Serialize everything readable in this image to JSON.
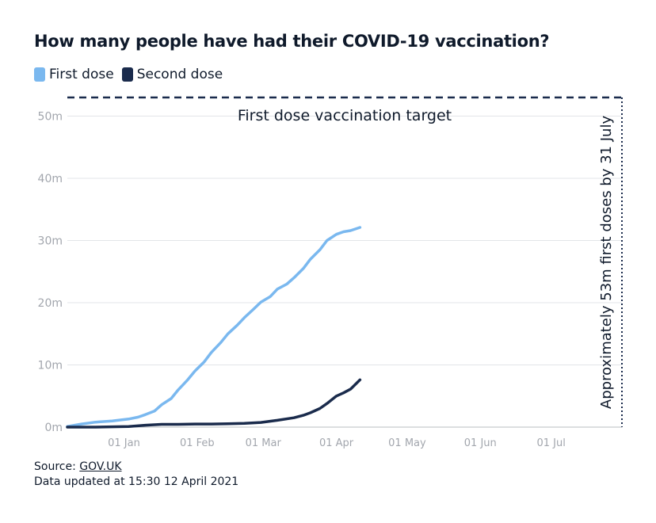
{
  "title": "How many people have had their COVID-19 vaccination?",
  "legend": [
    {
      "label": "First dose",
      "color": "#7ab8ef"
    },
    {
      "label": "Second dose",
      "color": "#1a2b4c"
    }
  ],
  "annotations": {
    "target_label": "First dose vaccination target",
    "deadline_label": "Approximately 53m first doses by 31 July"
  },
  "footer": {
    "source_prefix": "Source: ",
    "source_link": "GOV.UK",
    "updated": "Data updated at 15:30 12 April 2021"
  },
  "chart_data": {
    "type": "line",
    "ylim": [
      0,
      53
    ],
    "yticks": [
      {
        "value": 0,
        "label": "0m"
      },
      {
        "value": 10,
        "label": "10m"
      },
      {
        "value": 20,
        "label": "20m"
      },
      {
        "value": 30,
        "label": "30m"
      },
      {
        "value": 40,
        "label": "40m"
      },
      {
        "value": 50,
        "label": "50m"
      }
    ],
    "xlim": [
      "2020-12-08",
      "2021-07-31"
    ],
    "xticks": [
      {
        "date": "2021-01-01",
        "label": "01 Jan"
      },
      {
        "date": "2021-02-01",
        "label": "01 Feb"
      },
      {
        "date": "2021-03-01",
        "label": "01 Mar"
      },
      {
        "date": "2021-04-01",
        "label": "01 Apr"
      },
      {
        "date": "2021-05-01",
        "label": "01 May"
      },
      {
        "date": "2021-06-01",
        "label": "01 Jun"
      },
      {
        "date": "2021-07-01",
        "label": "01 Jul"
      }
    ],
    "target": {
      "value": 53,
      "date": "2021-07-31"
    },
    "series": [
      {
        "name": "First dose",
        "color": "#7ab8ef",
        "points": [
          [
            "2020-12-08",
            0.1
          ],
          [
            "2020-12-14",
            0.5
          ],
          [
            "2020-12-20",
            0.8
          ],
          [
            "2020-12-27",
            1.0
          ],
          [
            "2021-01-03",
            1.3
          ],
          [
            "2021-01-07",
            1.6
          ],
          [
            "2021-01-10",
            2.0
          ],
          [
            "2021-01-14",
            2.6
          ],
          [
            "2021-01-17",
            3.6
          ],
          [
            "2021-01-21",
            4.6
          ],
          [
            "2021-01-24",
            6.0
          ],
          [
            "2021-01-28",
            7.6
          ],
          [
            "2021-01-31",
            9.0
          ],
          [
            "2021-02-04",
            10.5
          ],
          [
            "2021-02-07",
            12.0
          ],
          [
            "2021-02-11",
            13.6
          ],
          [
            "2021-02-14",
            15.0
          ],
          [
            "2021-02-18",
            16.4
          ],
          [
            "2021-02-21",
            17.6
          ],
          [
            "2021-02-25",
            19.0
          ],
          [
            "2021-02-28",
            20.1
          ],
          [
            "2021-03-04",
            21.0
          ],
          [
            "2021-03-07",
            22.2
          ],
          [
            "2021-03-11",
            23.0
          ],
          [
            "2021-03-14",
            24.0
          ],
          [
            "2021-03-18",
            25.5
          ],
          [
            "2021-03-21",
            27.0
          ],
          [
            "2021-03-25",
            28.5
          ],
          [
            "2021-03-28",
            30.0
          ],
          [
            "2021-04-01",
            31.0
          ],
          [
            "2021-04-04",
            31.4
          ],
          [
            "2021-04-07",
            31.6
          ],
          [
            "2021-04-11",
            32.1
          ]
        ]
      },
      {
        "name": "Second dose",
        "color": "#1a2b4c",
        "points": [
          [
            "2020-12-08",
            0.0
          ],
          [
            "2020-12-20",
            0.0
          ],
          [
            "2021-01-03",
            0.1
          ],
          [
            "2021-01-10",
            0.3
          ],
          [
            "2021-01-17",
            0.45
          ],
          [
            "2021-01-24",
            0.45
          ],
          [
            "2021-01-31",
            0.5
          ],
          [
            "2021-02-07",
            0.5
          ],
          [
            "2021-02-14",
            0.55
          ],
          [
            "2021-02-21",
            0.6
          ],
          [
            "2021-02-28",
            0.75
          ],
          [
            "2021-03-07",
            1.1
          ],
          [
            "2021-03-14",
            1.5
          ],
          [
            "2021-03-18",
            1.9
          ],
          [
            "2021-03-21",
            2.3
          ],
          [
            "2021-03-25",
            3.0
          ],
          [
            "2021-03-28",
            3.8
          ],
          [
            "2021-04-01",
            5.0
          ],
          [
            "2021-04-04",
            5.5
          ],
          [
            "2021-04-07",
            6.1
          ],
          [
            "2021-04-11",
            7.6
          ]
        ]
      }
    ]
  }
}
